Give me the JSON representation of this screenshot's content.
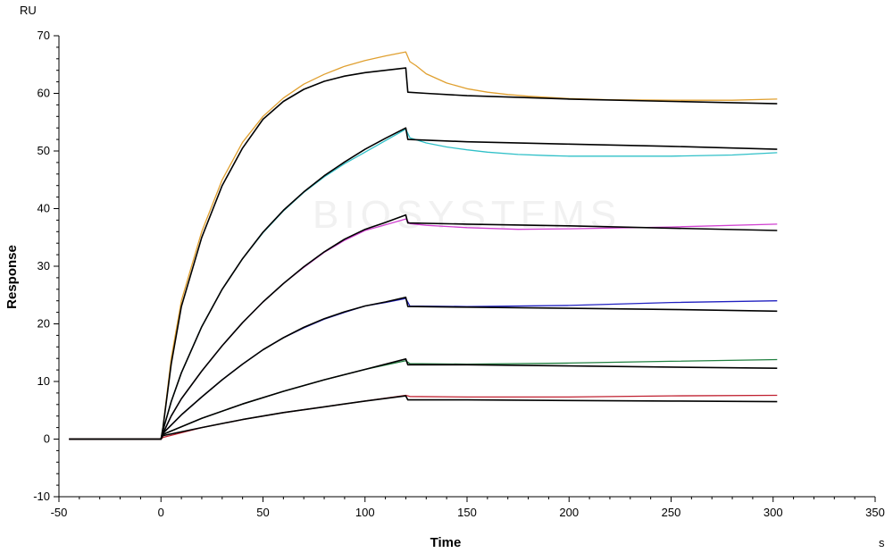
{
  "chart_data": {
    "type": "line",
    "xlabel": "Time",
    "ylabel": "Response",
    "x_unit": "s",
    "y_unit": "RU",
    "xlim": [
      -50,
      350
    ],
    "ylim": [
      -10,
      70
    ],
    "x_ticks": [
      -50,
      0,
      50,
      100,
      150,
      200,
      250,
      300,
      350
    ],
    "y_ticks": [
      -10,
      0,
      10,
      20,
      30,
      40,
      50,
      60,
      70
    ],
    "grid": false,
    "legend": "none",
    "watermark": "BIOSYSTEMS",
    "series": [
      {
        "color": "#E0A030",
        "x": [
          -45,
          0,
          1,
          5,
          10,
          20,
          30,
          40,
          50,
          60,
          70,
          80,
          90,
          100,
          110,
          120,
          122,
          125,
          130,
          140,
          150,
          160,
          170,
          180,
          200,
          220,
          250,
          280,
          302
        ],
        "y": [
          0,
          0,
          2,
          14,
          24,
          36,
          45,
          51.5,
          56,
          59.2,
          61.6,
          63.3,
          64.7,
          65.7,
          66.5,
          67.2,
          65.5,
          64.8,
          63.4,
          61.8,
          60.8,
          60.2,
          59.8,
          59.5,
          59.1,
          58.9,
          58.8,
          58.8,
          59
        ]
      },
      {
        "color": "#000000",
        "x": [
          -45,
          0,
          1,
          5,
          10,
          20,
          30,
          40,
          50,
          60,
          70,
          80,
          90,
          100,
          110,
          120,
          121,
          130,
          150,
          200,
          250,
          302
        ],
        "y": [
          0,
          0,
          2,
          13,
          23,
          35,
          44,
          50.5,
          55.5,
          58.6,
          60.7,
          62.1,
          63,
          63.6,
          64,
          64.4,
          60.2,
          60,
          59.6,
          59,
          58.6,
          58.2
        ]
      },
      {
        "color": "#30C0C8",
        "x": [
          -45,
          0,
          1,
          5,
          10,
          20,
          30,
          40,
          50,
          60,
          70,
          80,
          90,
          100,
          110,
          120,
          122,
          130,
          140,
          150,
          160,
          175,
          190,
          200,
          220,
          250,
          280,
          302
        ],
        "y": [
          0,
          0,
          1.5,
          6.5,
          11.5,
          19.5,
          26,
          31.3,
          35.8,
          39.6,
          42.8,
          45.5,
          47.8,
          49.8,
          51.8,
          53.8,
          52.3,
          51.4,
          50.7,
          50.2,
          49.8,
          49.4,
          49.2,
          49.1,
          49.1,
          49.1,
          49.3,
          49.7
        ]
      },
      {
        "color": "#000000",
        "x": [
          -45,
          0,
          1,
          5,
          10,
          20,
          30,
          40,
          50,
          60,
          70,
          80,
          90,
          100,
          110,
          120,
          121,
          150,
          200,
          250,
          302
        ],
        "y": [
          0,
          0,
          1.5,
          6.5,
          11.5,
          19.5,
          26,
          31.3,
          35.9,
          39.7,
          42.9,
          45.7,
          48.1,
          50.3,
          52.2,
          54,
          52,
          51.6,
          51.2,
          50.8,
          50.3
        ]
      },
      {
        "color": "#D040D0",
        "x": [
          -45,
          0,
          1,
          5,
          10,
          20,
          30,
          40,
          50,
          60,
          70,
          80,
          90,
          100,
          110,
          120,
          122,
          130,
          150,
          175,
          200,
          250,
          302
        ],
        "y": [
          0,
          0,
          1,
          4,
          7,
          11.8,
          16.2,
          20.2,
          23.8,
          27,
          29.8,
          32.4,
          34.5,
          36.2,
          37.2,
          38.2,
          37.4,
          37.1,
          36.7,
          36.4,
          36.5,
          36.8,
          37.3
        ]
      },
      {
        "color": "#000000",
        "x": [
          -45,
          0,
          1,
          5,
          10,
          20,
          30,
          40,
          50,
          60,
          70,
          80,
          90,
          100,
          110,
          120,
          121,
          150,
          200,
          250,
          302
        ],
        "y": [
          0,
          0,
          1,
          4,
          7,
          11.8,
          16.2,
          20.2,
          23.8,
          27,
          29.9,
          32.5,
          34.7,
          36.4,
          37.6,
          38.9,
          37.5,
          37.3,
          37,
          36.6,
          36.2
        ]
      },
      {
        "color": "#2020C0",
        "x": [
          -45,
          0,
          1,
          10,
          20,
          30,
          40,
          50,
          60,
          70,
          80,
          90,
          100,
          110,
          120,
          122,
          150,
          200,
          250,
          302
        ],
        "y": [
          0,
          0,
          1,
          4.2,
          7.3,
          10.3,
          13,
          15.5,
          17.6,
          19.3,
          20.8,
          22,
          23.1,
          23.7,
          24.4,
          23.1,
          23,
          23.2,
          23.7,
          24
        ]
      },
      {
        "color": "#000000",
        "x": [
          -45,
          0,
          1,
          10,
          20,
          30,
          40,
          50,
          60,
          70,
          80,
          90,
          100,
          110,
          120,
          121,
          150,
          200,
          250,
          302
        ],
        "y": [
          0,
          0,
          1,
          4.2,
          7.3,
          10.3,
          13,
          15.5,
          17.6,
          19.4,
          20.9,
          22.1,
          23.1,
          23.8,
          24.6,
          23,
          22.9,
          22.7,
          22.5,
          22.2
        ]
      },
      {
        "color": "#208040",
        "x": [
          -45,
          0,
          1,
          20,
          40,
          60,
          80,
          100,
          120,
          122,
          150,
          200,
          250,
          302
        ],
        "y": [
          0,
          0,
          0.8,
          3.6,
          6.1,
          8.3,
          10.3,
          12.1,
          13.6,
          13.1,
          13,
          13.2,
          13.5,
          13.8
        ]
      },
      {
        "color": "#000000",
        "x": [
          -45,
          0,
          1,
          20,
          40,
          60,
          80,
          100,
          120,
          121,
          150,
          200,
          250,
          302
        ],
        "y": [
          0,
          0,
          0.8,
          3.6,
          6.1,
          8.3,
          10.3,
          12.1,
          13.9,
          12.9,
          12.9,
          12.7,
          12.5,
          12.3
        ]
      },
      {
        "color": "#C02030",
        "x": [
          -45,
          0,
          1,
          20,
          40,
          60,
          80,
          100,
          120,
          122,
          150,
          200,
          250,
          302
        ],
        "y": [
          0,
          0,
          0.3,
          2,
          3.4,
          4.6,
          5.6,
          6.6,
          7.6,
          7.4,
          7.3,
          7.3,
          7.5,
          7.6
        ]
      },
      {
        "color": "#000000",
        "x": [
          -45,
          0,
          1,
          20,
          40,
          60,
          80,
          100,
          120,
          121,
          150,
          200,
          250,
          302
        ],
        "y": [
          0,
          0,
          0.6,
          2,
          3.4,
          4.6,
          5.6,
          6.6,
          7.5,
          6.8,
          6.8,
          6.7,
          6.6,
          6.5
        ]
      }
    ]
  }
}
